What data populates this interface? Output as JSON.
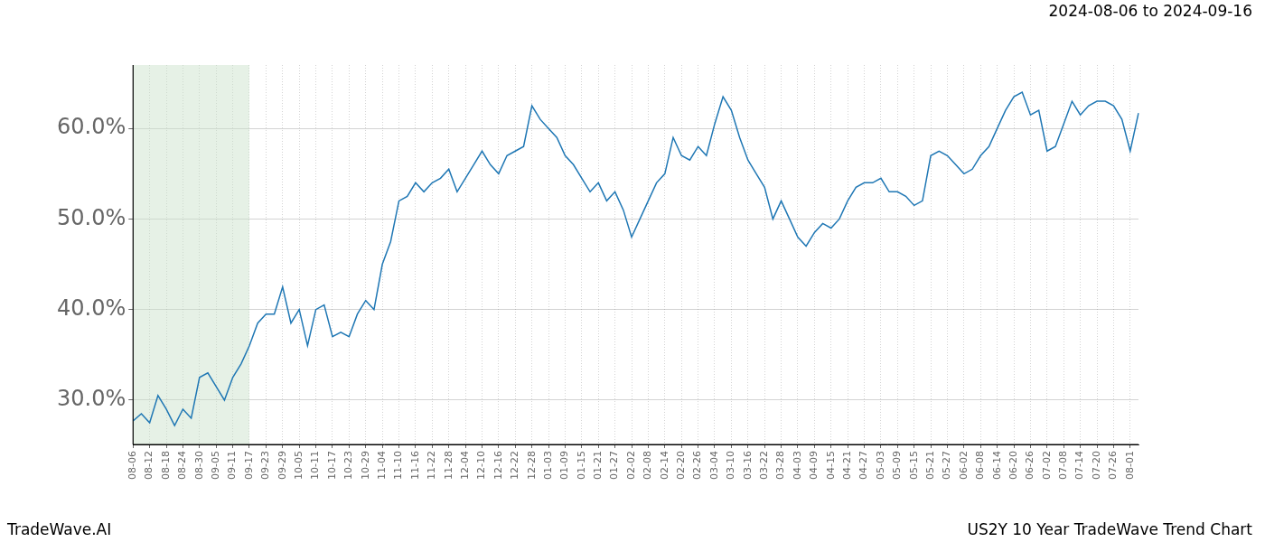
{
  "chart_data": {
    "type": "line",
    "title": "US2Y 10 Year TradeWave Trend Chart",
    "subtitle": "2024-08-06 to 2024-09-16",
    "source": "TradeWave.AI",
    "categories": [
      "08-06",
      null,
      "08-12",
      null,
      "08-18",
      null,
      "08-24",
      null,
      "08-30",
      null,
      "09-05",
      null,
      "09-11",
      null,
      "09-17",
      null,
      "09-23",
      null,
      "09-29",
      null,
      "10-05",
      null,
      "10-11",
      null,
      "10-17",
      null,
      "10-23",
      null,
      "10-29",
      null,
      "11-04",
      null,
      "11-10",
      null,
      "11-16",
      null,
      "11-22",
      null,
      "11-28",
      null,
      "12-04",
      null,
      "12-10",
      null,
      "12-16",
      null,
      "12-22",
      null,
      "12-28",
      null,
      "01-03",
      null,
      "01-09",
      null,
      "01-15",
      null,
      "01-21",
      null,
      "01-27",
      null,
      "02-02",
      null,
      "02-08",
      null,
      "02-14",
      null,
      "02-20",
      null,
      "02-26",
      null,
      "03-04",
      null,
      "03-10",
      null,
      "03-16",
      null,
      "03-22",
      null,
      "03-28",
      null,
      "04-03",
      null,
      "04-09",
      null,
      "04-15",
      null,
      "04-21",
      null,
      "04-27",
      null,
      "05-03",
      null,
      "05-09",
      null,
      "05-15",
      null,
      "05-21",
      null,
      "05-27",
      null,
      "06-02",
      null,
      "06-08",
      null,
      "06-14",
      null,
      "06-20",
      null,
      "06-26",
      null,
      "07-02",
      null,
      "07-08",
      null,
      "07-14",
      null,
      "07-20",
      null,
      "07-26",
      null,
      "08-01",
      null
    ],
    "values": [
      27.7,
      28.5,
      27.5,
      30.5,
      29.0,
      27.2,
      29.0,
      28.0,
      32.5,
      33.0,
      31.5,
      30.0,
      32.5,
      34.0,
      36.0,
      38.5,
      39.5,
      39.5,
      42.5,
      38.5,
      40.0,
      36.0,
      40.0,
      40.5,
      37.0,
      37.5,
      37.0,
      39.5,
      41.0,
      40.0,
      45.0,
      47.5,
      52.0,
      52.5,
      54.0,
      53.0,
      54.0,
      54.5,
      55.5,
      53.0,
      54.5,
      56.0,
      57.5,
      56.0,
      55.0,
      57.0,
      57.5,
      58.0,
      62.5,
      61.0,
      60.0,
      59.0,
      57.0,
      56.0,
      54.5,
      53.0,
      54.0,
      52.0,
      53.0,
      51.0,
      48.0,
      50.0,
      52.0,
      54.0,
      55.0,
      59.0,
      57.0,
      56.5,
      58.0,
      57.0,
      60.5,
      63.5,
      62.0,
      59.0,
      56.5,
      55.0,
      53.5,
      50.0,
      52.0,
      50.0,
      48.0,
      47.0,
      48.5,
      49.5,
      49.0,
      50.0,
      52.0,
      53.5,
      54.0,
      54.0,
      54.5,
      53.0,
      53.0,
      52.5,
      51.5,
      52.0,
      57.0,
      57.5,
      57.0,
      56.0,
      55.0,
      55.5,
      57.0,
      58.0,
      60.0,
      62.0,
      63.5,
      64.0,
      61.5,
      62.0,
      57.5,
      58.0,
      60.5,
      63.0,
      61.5,
      62.5,
      63.0,
      63.0,
      62.5,
      61.0,
      57.5,
      61.7
    ],
    "color": "#1f77b4",
    "highlight": [
      "08-06",
      "09-17"
    ],
    "ylim": [
      25.1,
      67.0
    ],
    "yticks": [
      {
        "value": 30,
        "label": "30.0%"
      },
      {
        "value": 40,
        "label": "40.0%"
      },
      {
        "value": 50,
        "label": "50.0%"
      },
      {
        "value": 60,
        "label": "60.0%"
      }
    ],
    "grid": true
  }
}
